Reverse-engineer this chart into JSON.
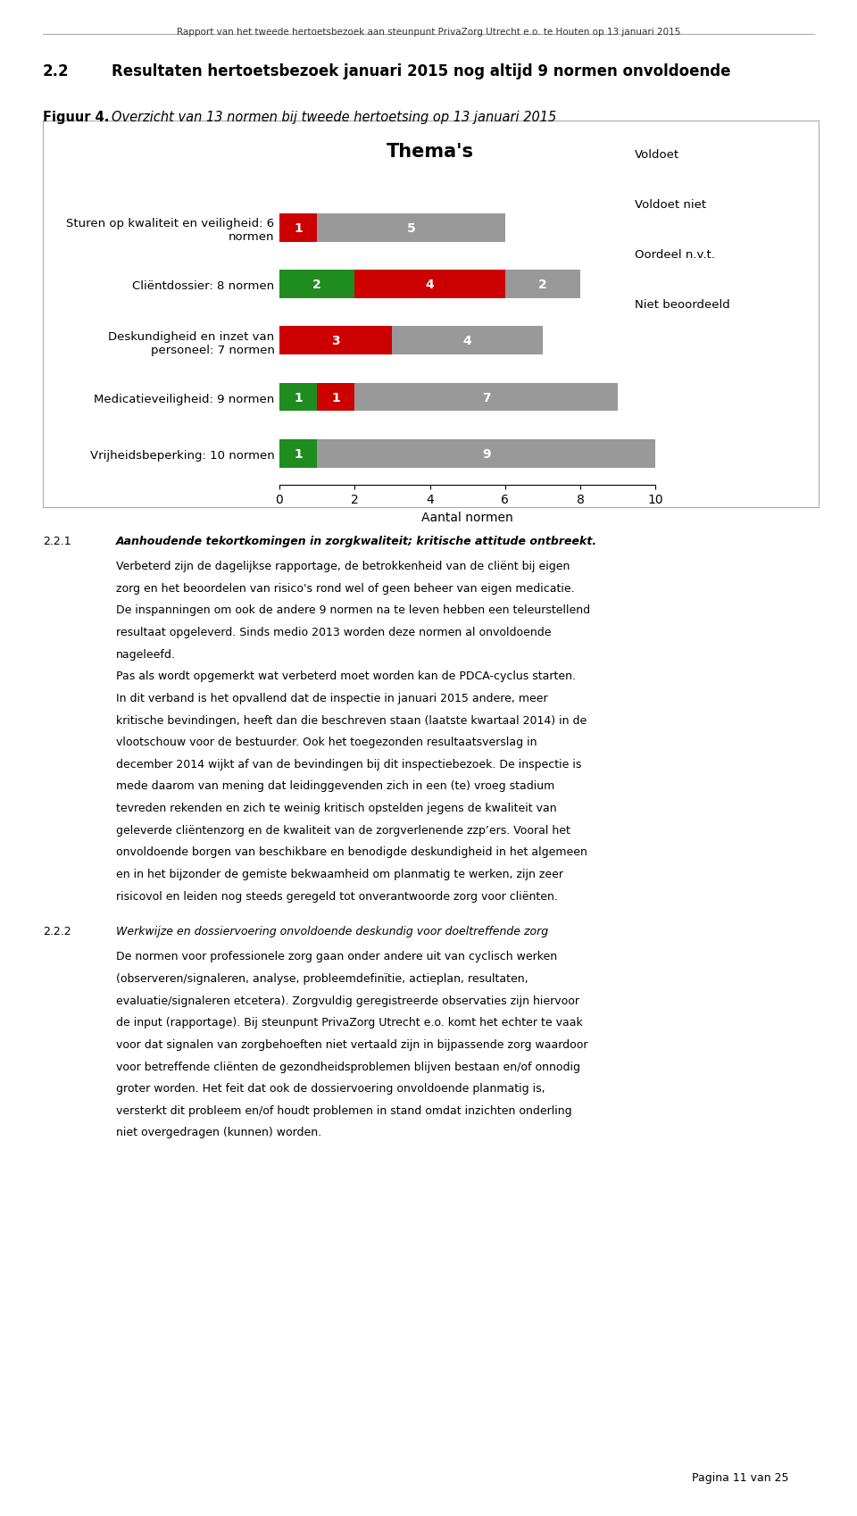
{
  "header_text": "Rapport van het tweede hertoetsbezoek aan steunpunt PrivaZorg Utrecht e.o. te Houten op 13 januari 2015",
  "section_num": "2.2",
  "section_title": "Resultaten hertoetsbezoek januari 2015 nog altijd 9 normen onvoldoende",
  "figure_label": "Figuur 4.",
  "figure_caption": "Overzicht van 13 normen bij tweede hertoetsing op 13 januari 2015",
  "chart_title": "Thema's",
  "xlabel": "Aantal normen",
  "categories": [
    "Sturen op kwaliteit en veiligheid: 6\nnormen",
    "Cliëntdossier: 8 normen",
    "Deskundigheid en inzet van\npersoneel: 7 normen",
    "Medicatieveiligheid: 9 normen",
    "Vrijheidsbeperking: 10 normen"
  ],
  "voldoet": [
    0,
    2,
    0,
    1,
    1
  ],
  "voldoet_niet": [
    1,
    4,
    3,
    1,
    0
  ],
  "oordeel_nvt": [
    0,
    0,
    0,
    0,
    0
  ],
  "niet_beoordeeld": [
    5,
    2,
    4,
    7,
    9
  ],
  "color_voldoet": "#1E8C1E",
  "color_voldoet_niet": "#CC0000",
  "color_oordeel_nvt": "#555555",
  "color_niet_beoordeeld": "#999999",
  "legend_labels": [
    "Voldoet",
    "Voldoet niet",
    "Oordeel n.v.t.",
    "Niet beoordeeld"
  ],
  "bar_height": 0.5,
  "xlim": [
    0,
    10
  ],
  "footer_text": "Pagina 11 van 25",
  "page_bg": "#ffffff",
  "text_color_on_bar": "#ffffff",
  "font_size_bar_label": 10,
  "font_size_title": 15,
  "font_size_axis_label": 9.5,
  "font_size_category": 9.5,
  "font_size_legend": 9.5,
  "font_size_header": 7.5,
  "font_size_section_num": 12,
  "font_size_section_title": 12,
  "font_size_figure_label": 10.5,
  "font_size_xlabel": 10,
  "para_section_num": "2.2.1",
  "para_section_num2": "2.2.2",
  "para1_title": "Aanhoudende tekortkomingen in zorgkwaliteit; kritische attitude ontbreekt.",
  "para1_body": "Verbeterd zijn de dagelijkse rapportage, de betrokkenheid van de cliënt bij eigen zorg en het beoordelen van risico’s rond wel of geen beheer van eigen medicatie. De inspanningen om ook de andere 9 normen na te leven hebben een teleurstellend resultaat opgeleverd. Sinds medio 2013 worden deze normen al onvoldoende nageleefd.\nPas als wordt opgemerkt wat verbeterd moet worden kan de PDCA-cyclus starten. In dit verband is het opvallend dat de inspectie in januari 2015 andere, meer kritische bevindingen, heeft dan die beschreven staan (laatste kwartaal 2014) in de vlootschouw voor de bestuurder. Ook het toegezonden resultaatsverslag in december 2014 wijkt af van de bevindingen bij dit inspectiebezoek. De inspectie is mede daarom van mening dat leidinggevenden zich in een (te) vroeg stadium tevreden rekenden en zich te weinig kritisch opstelden jegens de kwaliteit van geleverde cliëntenzorg en de kwaliteit van de zorgverlenende zzp’ers. Vooral het onvoldoende borgen van beschikbare en benodigde deskundigheid in het algemeen en in het bijzonder de gemiste bekwaamheid om planmatig te werken, zijn zeer risicovol en leiden nog steeds geregeld tot onverantwoorde zorg voor cliënten.",
  "para2_title": "Werkwijze en dossiervoering onvoldoende deskundig voor doeltreffende zorg",
  "para2_body": "De normen voor professionele zorg gaan onder andere uit van cyclisch werken (observeren/signaleren, analyse, probleemdefinïtie, actieplan, resultaten, evaluatie/signaleren etcetera). Zorgvuldig geregistreerde observaties zijn hiervoor de input (rapportage). Bij steunpunt PrivaZorg Utrecht e.o. komt het echter te vaak voor dat signalen van zorgbehoeften niet vertaald zijn in bijpassende zorg waardoor voor betreffende cliënten de gezondheidsproblemen blijven bestaan en/of onnodig groter worden. Het feit dat ook de dossiervoering onvoldoende planmatig is, versterkt dit probleem en/of houdt problemen in stand omdat inzichten onderling niet overgedragen (kunnen) worden."
}
